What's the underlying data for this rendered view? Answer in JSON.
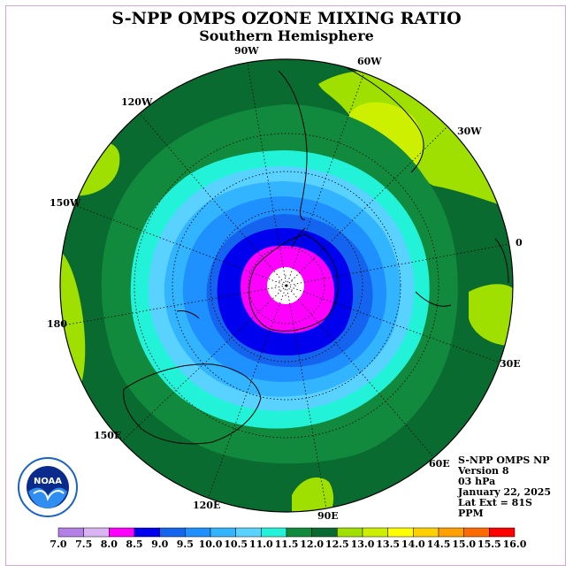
{
  "title": "S-NPP OMPS OZONE MIXING RATIO",
  "subtitle": "Southern Hemisphere",
  "info": {
    "line1": "S-NPP OMPS NP",
    "line2": "Version 8",
    "line3": "03 hPa",
    "line4": "January 22, 2025",
    "line5": "Lat Ext = 81S",
    "line6": "PPM"
  },
  "logo_text": "NOAA",
  "longitude_labels": {
    "w90": "90W",
    "w60": "60W",
    "w30": "30W",
    "zero": "0",
    "e30": "30E",
    "e60": "60E",
    "e90": "90E",
    "e120": "120E",
    "e150": "150E",
    "deg180": "180",
    "w150": "150W",
    "w120": "120W"
  },
  "colorbar": {
    "ticks": [
      "7.0",
      "7.5",
      "8.0",
      "8.5",
      "9.0",
      "9.5",
      "10.0",
      "10.5",
      "11.0",
      "11.5",
      "12.0",
      "12.5",
      "13.0",
      "13.5",
      "14.0",
      "14.5",
      "15.0",
      "15.5",
      "16.0"
    ],
    "colors": [
      "#b380e6",
      "#d9b3f2",
      "#ff00ff",
      "#0000ee",
      "#1464f0",
      "#1e90ff",
      "#33b4ff",
      "#5ad2ff",
      "#22f2d8",
      "#118a3e",
      "#0a6b30",
      "#a0e000",
      "#ccf000",
      "#ffff00",
      "#ffd000",
      "#ffa000",
      "#ff6a00",
      "#ff0000",
      "#8b5a3c"
    ]
  },
  "map_colors": {
    "ring_outer": "#0a6b30",
    "ring_1150": "#118a3e",
    "ring_1100": "#22f2d8",
    "ring_1050": "#5ad2ff",
    "ring_1000": "#33b4ff",
    "ring_950": "#1e90ff",
    "ring_900": "#1464f0",
    "ring_850": "#0000ee",
    "ring_800": "#ff00ff",
    "patch_1250": "#a0e000",
    "patch_1300": "#ccf000",
    "pole": "#ffffff"
  }
}
